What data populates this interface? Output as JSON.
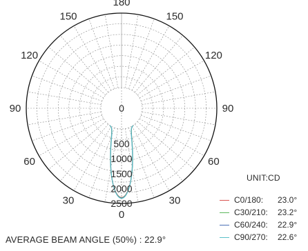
{
  "chart_data": {
    "type": "polar",
    "unit_label": "UNIT:CD",
    "angle_labels": [
      {
        "text": "180",
        "deg": 180
      },
      {
        "text": "150",
        "deg": 150
      },
      {
        "text": "150",
        "deg": -150
      },
      {
        "text": "120",
        "deg": 120
      },
      {
        "text": "120",
        "deg": -120
      },
      {
        "text": "90",
        "deg": 90
      },
      {
        "text": "90",
        "deg": -90
      },
      {
        "text": "60",
        "deg": 60
      },
      {
        "text": "60",
        "deg": -60
      },
      {
        "text": "30",
        "deg": 30
      },
      {
        "text": "30",
        "deg": -30
      },
      {
        "text": "0",
        "deg": 0
      }
    ],
    "radial_ticks": [
      {
        "text": "0",
        "value": 0
      },
      {
        "text": "500",
        "value": 500
      },
      {
        "text": "1000",
        "value": 1000
      },
      {
        "text": "1500",
        "value": 1500
      },
      {
        "text": "2000",
        "value": 2000
      },
      {
        "text": "2500",
        "value": 2500
      }
    ],
    "rmax": 2500,
    "series": [
      {
        "name": "C0/180:",
        "value": "23.0°",
        "color": "#d9534f",
        "peak": 2300,
        "half_angle": 11.5
      },
      {
        "name": "C30/210:",
        "value": "23.2°",
        "color": "#5cb85c",
        "peak": 2310,
        "half_angle": 11.6
      },
      {
        "name": "C60/240:",
        "value": "22.9°",
        "color": "#4a6fb5",
        "peak": 2320,
        "half_angle": 11.45
      },
      {
        "name": "C90/270:",
        "value": "22.6°",
        "color": "#5bc0c8",
        "peak": 2330,
        "half_angle": 11.3
      }
    ],
    "footer": "AVERAGE BEAM ANGLE (50%) : 22.9°"
  }
}
